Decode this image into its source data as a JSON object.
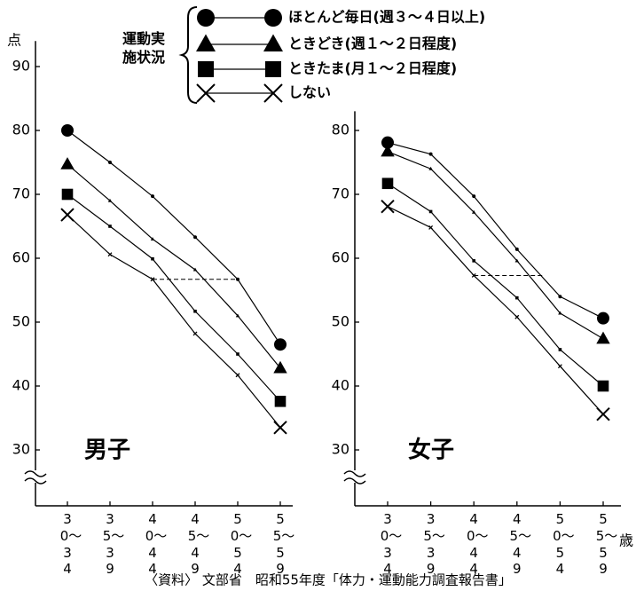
{
  "y_label": "点",
  "legend_title": "運動実施状況",
  "source": "〈資料〉 文部省　昭和55年度「体力・運動能力調査報告書」",
  "chart_data": [
    {
      "type": "line",
      "title": "男子",
      "categories": [
        "30〜34",
        "35〜39",
        "40〜44",
        "45〜49",
        "50〜54",
        "55〜59"
      ],
      "ylim": [
        25,
        94
      ],
      "yticks": [
        30,
        40,
        50,
        60,
        70,
        80,
        90
      ],
      "series": [
        {
          "name": "ほとんど毎日(週３～４日以上)",
          "marker": "circle",
          "color": "#000000",
          "values": [
            80.0,
            75.0,
            69.7,
            63.3,
            56.7,
            46.5
          ]
        },
        {
          "name": "ときどき(週１～２日程度)",
          "marker": "triangle",
          "color": "#000000",
          "values": [
            74.7,
            69.0,
            63.0,
            58.2,
            51.0,
            42.8
          ]
        },
        {
          "name": "ときたま(月１～２日程度)",
          "marker": "square",
          "color": "#000000",
          "values": [
            70.0,
            65.0,
            59.9,
            51.7,
            45.0,
            37.6
          ]
        },
        {
          "name": "しない",
          "marker": "x",
          "color": "#000000",
          "values": [
            66.8,
            60.6,
            56.7,
            48.2,
            41.7,
            33.5
          ]
        }
      ]
    },
    {
      "type": "line",
      "title": "女子",
      "x_label": "歳",
      "categories": [
        "30〜34",
        "35〜39",
        "40〜44",
        "45〜49",
        "50〜54",
        "55〜59"
      ],
      "ylim": [
        25,
        83
      ],
      "yticks": [
        30,
        40,
        50,
        60,
        70,
        80
      ],
      "series": [
        {
          "marker": "circle",
          "color": "#000000",
          "values": [
            78.1,
            76.3,
            69.7,
            61.4,
            54.0,
            50.6
          ]
        },
        {
          "marker": "triangle",
          "color": "#000000",
          "values": [
            76.7,
            74.0,
            67.2,
            59.6,
            51.4,
            47.4
          ]
        },
        {
          "marker": "square",
          "color": "#000000",
          "values": [
            71.7,
            67.3,
            59.6,
            53.8,
            45.7,
            40.0
          ]
        },
        {
          "marker": "x",
          "color": "#000000",
          "values": [
            68.1,
            64.8,
            57.3,
            50.8,
            43.1,
            35.6
          ]
        }
      ]
    }
  ]
}
